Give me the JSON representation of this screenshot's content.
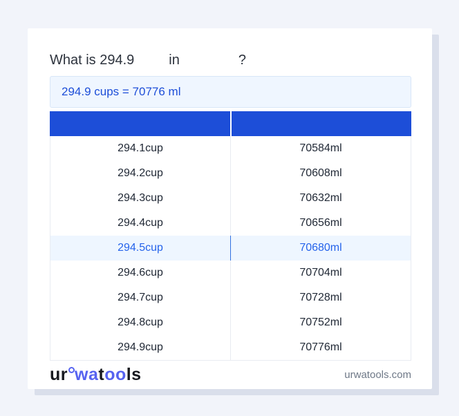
{
  "card": {
    "title": {
      "prefix": "What is 294.9",
      "middle": "in",
      "suffix": "?"
    },
    "result": {
      "text": "294.9 cups = 70776 ml"
    },
    "table": {
      "headers": [
        "",
        ""
      ],
      "highlighted_index": 4,
      "rows": [
        [
          "294.1cup",
          "70584ml"
        ],
        [
          "294.2cup",
          "70608ml"
        ],
        [
          "294.3cup",
          "70632ml"
        ],
        [
          "294.4cup",
          "70656ml"
        ],
        [
          "294.5cup",
          "70680ml"
        ],
        [
          "294.6cup",
          "70704ml"
        ],
        [
          "294.7cup",
          "70728ml"
        ],
        [
          "294.8cup",
          "70752ml"
        ],
        [
          "294.9cup",
          "70776ml"
        ]
      ]
    },
    "footer": {
      "logo": {
        "part1": "ur",
        "part2": "wa",
        "part3": "t",
        "part4": "oo",
        "part5": "ls"
      },
      "domain": "urwatools.com"
    }
  },
  "colors": {
    "page_background": "#f2f4fa",
    "card_background": "#ffffff",
    "card_shadow": "#dadfeb",
    "table_header_blue": "#1d4ed8",
    "result_box_background": "#eff6ff",
    "result_text_blue": "#1d4ed8",
    "highlight_row_background": "#eef6ff",
    "highlight_text_blue": "#2563eb",
    "row_text": "#212936",
    "logo_blue": "#5663f0",
    "domain_text": "#6e7887"
  }
}
